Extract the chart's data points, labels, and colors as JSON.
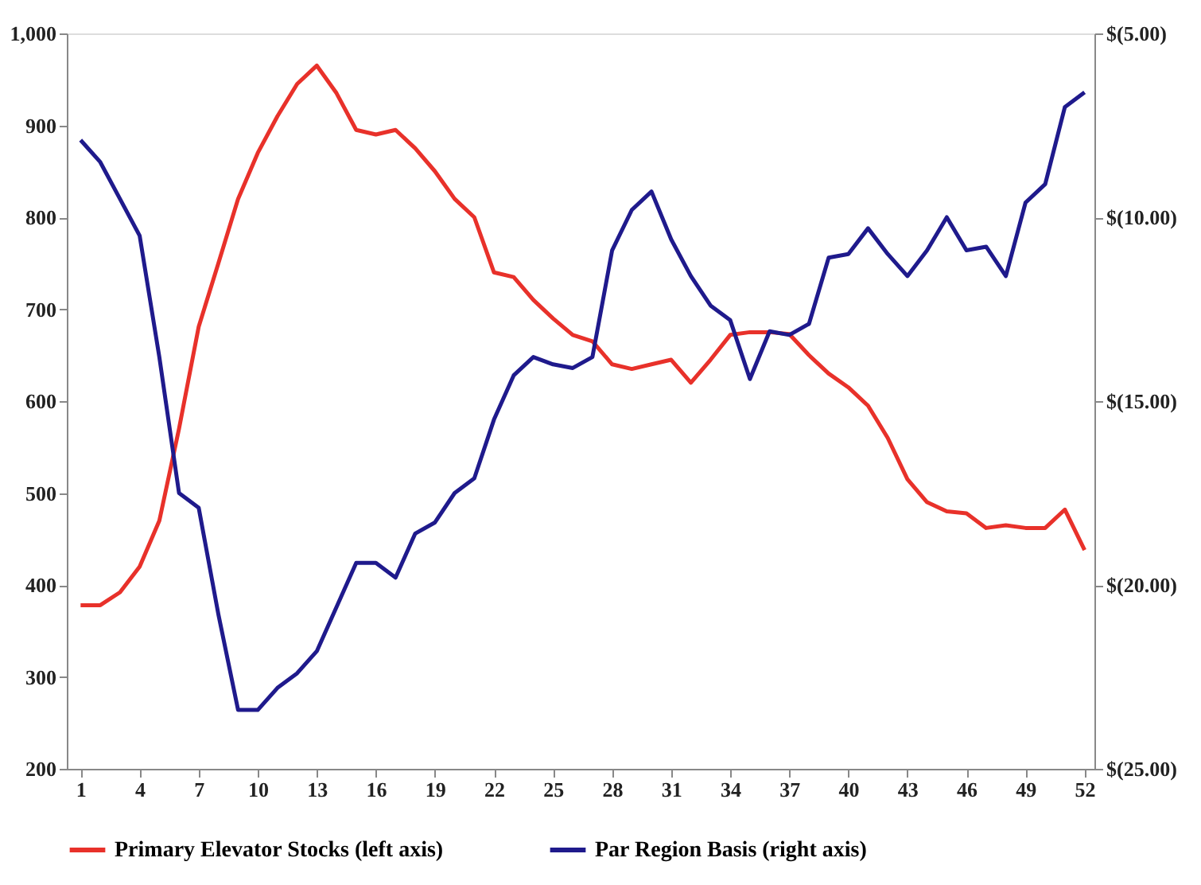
{
  "chart_data": {
    "type": "line",
    "x": [
      1,
      2,
      3,
      4,
      5,
      6,
      7,
      8,
      9,
      10,
      11,
      12,
      13,
      14,
      15,
      16,
      17,
      18,
      19,
      20,
      21,
      22,
      23,
      24,
      25,
      26,
      27,
      28,
      29,
      30,
      31,
      32,
      33,
      34,
      35,
      36,
      37,
      38,
      39,
      40,
      41,
      42,
      43,
      44,
      45,
      46,
      47,
      48,
      49,
      50,
      51,
      52
    ],
    "series": [
      {
        "name": "Primary Elevator Stocks (left axis)",
        "color": "#e8312a",
        "values": [
          378,
          378,
          392,
          420,
          470,
          570,
          681,
          750,
          820,
          870,
          910,
          945,
          965,
          935,
          895,
          890,
          895,
          875,
          850,
          820,
          800,
          740,
          735,
          710,
          690,
          672,
          665,
          640,
          635,
          640,
          645,
          620,
          645,
          672,
          675,
          675,
          673,
          650,
          630,
          615,
          595,
          560,
          515,
          490,
          480,
          478,
          462,
          465,
          462,
          462,
          482,
          438
        ]
      },
      {
        "name": "Par Region Basis (right axis)",
        "color": "#1f1a8c",
        "axis": "y2",
        "values": [
          -7.9,
          -8.5,
          -9.5,
          -10.5,
          -13.8,
          -17.5,
          -17.9,
          -20.8,
          -23.4,
          -23.4,
          -22.8,
          -22.4,
          -21.8,
          -20.6,
          -19.4,
          -19.4,
          -19.8,
          -18.6,
          -18.3,
          -17.5,
          -17.1,
          -15.5,
          -14.3,
          -13.8,
          -14.0,
          -14.1,
          -13.8,
          -10.9,
          -9.8,
          -9.3,
          -10.6,
          -11.6,
          -12.4,
          -12.8,
          -14.4,
          -13.1,
          -13.2,
          -12.9,
          -11.1,
          -11.0,
          -10.3,
          -11.0,
          -11.6,
          -10.9,
          -10.0,
          -10.9,
          -10.8,
          -11.6,
          -9.6,
          -9.1,
          -7.0,
          -6.6
        ]
      }
    ],
    "xlim": [
      0.3,
      52.5
    ],
    "xticks": [
      1,
      4,
      7,
      10,
      13,
      16,
      19,
      22,
      25,
      28,
      31,
      34,
      37,
      40,
      43,
      46,
      49,
      52
    ],
    "ylim": [
      200,
      1000
    ],
    "yticks": [
      200,
      300,
      400,
      500,
      600,
      700,
      800,
      900,
      {
        "value": 1000,
        "label": "1,000"
      }
    ],
    "y2lim": [
      -25,
      -5
    ],
    "y2ticks": [
      {
        "value": -25,
        "label": "$(25.00)"
      },
      {
        "value": -20,
        "label": "$(20.00)"
      },
      {
        "value": -15,
        "label": "$(15.00)"
      },
      {
        "value": -10,
        "label": "$(10.00)"
      },
      {
        "value": -5,
        "label": "$(5.00)"
      }
    ],
    "legend": "bottom",
    "grid": false
  }
}
